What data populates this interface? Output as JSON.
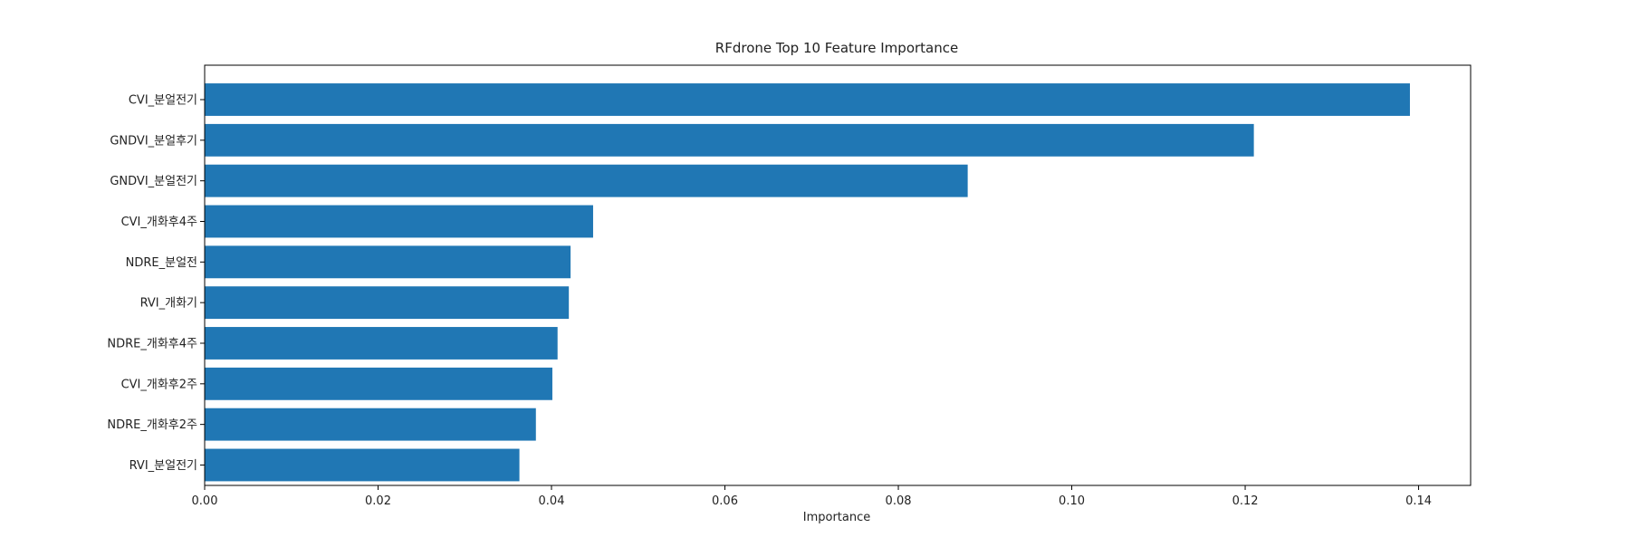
{
  "chart_data": {
    "type": "bar",
    "orientation": "horizontal",
    "title": "RFdrone Top 10 Feature Importance",
    "xlabel": "Importance",
    "ylabel": "",
    "xlim": [
      0.0,
      0.146
    ],
    "xticks": [
      0.0,
      0.02,
      0.04,
      0.06,
      0.08,
      0.1,
      0.12,
      0.14
    ],
    "xtick_labels": [
      "0.00",
      "0.02",
      "0.04",
      "0.06",
      "0.08",
      "0.10",
      "0.12",
      "0.14"
    ],
    "grid": false,
    "legend": "none",
    "bar_color": "#2077b4",
    "categories": [
      "CVI_분얼전기",
      "GNDVI_분얼후기",
      "GNDVI_분얼전기",
      "CVI_개화후4주",
      "NDRE_분얼전",
      "RVI_개화기",
      "NDRE_개화후4주",
      "CVI_개화후2주",
      "NDRE_개화후2주",
      "RVI_분얼전기"
    ],
    "values": [
      0.139,
      0.121,
      0.088,
      0.0448,
      0.0422,
      0.042,
      0.0407,
      0.0401,
      0.0382,
      0.0363
    ]
  }
}
